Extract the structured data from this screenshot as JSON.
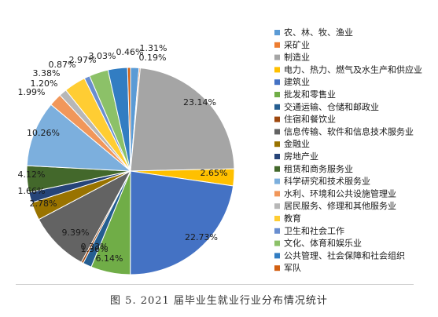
{
  "chart_data": {
    "type": "pie",
    "caption": "图 5. 2021 届毕业生就业行业分布情况统计",
    "legend_position": "right",
    "slices": [
      {
        "name": "农、林、牧、渔业",
        "value": 1.31,
        "label": "1.31%",
        "color": "#5B9BD5"
      },
      {
        "name": "采矿业",
        "value": 0.19,
        "label": "0.19%",
        "color": "#ED7D31"
      },
      {
        "name": "制造业",
        "value": 23.14,
        "label": "23.14%",
        "color": "#A5A5A5"
      },
      {
        "name": "电力、热力、燃气及水生产和供应业",
        "value": 2.65,
        "label": "2.65%",
        "color": "#FFC000"
      },
      {
        "name": "建筑业",
        "value": 22.73,
        "label": "22.73%",
        "color": "#4472C4"
      },
      {
        "name": "批发和零售业",
        "value": 6.14,
        "label": "6.14%",
        "color": "#70AD47"
      },
      {
        "name": "交通运输、仓储和邮政业",
        "value": 1.36,
        "label": "1.36%",
        "color": "#255E91"
      },
      {
        "name": "住宿和餐饮业",
        "value": 0.33,
        "label": "0.33%",
        "color": "#9E480E"
      },
      {
        "name": "信息传输、软件和信息技术服务业",
        "value": 9.39,
        "label": "9.39%",
        "color": "#636363"
      },
      {
        "name": "金融业",
        "value": 2.78,
        "label": "2.78%",
        "color": "#997300"
      },
      {
        "name": "房地产业",
        "value": 1.66,
        "label": "1.66%",
        "color": "#264478"
      },
      {
        "name": "租赁和商务服务业",
        "value": 4.12,
        "label": "4.12%",
        "color": "#43682B"
      },
      {
        "name": "科学研究和技术服务业",
        "value": 10.26,
        "label": "10.26%",
        "color": "#7CAFDD"
      },
      {
        "name": "水利、环境和公共设施管理业",
        "value": 1.99,
        "label": "1.99%",
        "color": "#F1975A"
      },
      {
        "name": "居民服务、修理和其他服务业",
        "value": 1.2,
        "label": "1.20%",
        "color": "#B7B7B7"
      },
      {
        "name": "教育",
        "value": 3.38,
        "label": "3.38%",
        "color": "#FFCD33"
      },
      {
        "name": "卫生和社会工作",
        "value": 0.87,
        "label": "0.87%",
        "color": "#698ED0"
      },
      {
        "name": "文化、体育和娱乐业",
        "value": 2.97,
        "label": "2.97%",
        "color": "#8CC168"
      },
      {
        "name": "公共管理、社会保障和社会组织",
        "value": 3.03,
        "label": "3.03%",
        "color": "#327DC2"
      },
      {
        "name": "军队",
        "value": 0.46,
        "label": "0.46%",
        "color": "#D26012"
      }
    ]
  }
}
